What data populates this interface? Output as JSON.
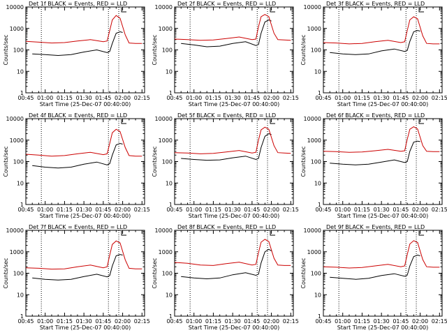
{
  "figure": {
    "colors": {
      "events": "#000000",
      "lld": "#cc0000",
      "axes": "#000000",
      "background": "#ffffff"
    }
  },
  "chart_data": [
    {
      "type": "line",
      "title": "Det 1f BLACK = Events, RED = LLD",
      "xlabel": "Start Time (25-Dec-07 00:40:00)",
      "ylabel": "Counts/sec",
      "y_scale": "log",
      "ylim": [
        1,
        10000
      ],
      "xlim": [
        "00:45",
        "02:17"
      ],
      "x_ticks": [
        "00:45",
        "01:00",
        "01:15",
        "01:30",
        "01:45",
        "02:00",
        "02:15"
      ],
      "y_ticks": [
        "1",
        "10",
        "100",
        "1000",
        "10000"
      ],
      "vlines": [
        "00:57",
        "01:49",
        "01:57"
      ],
      "series": [
        {
          "name": "Events",
          "x": [
            "00:50",
            "01:00",
            "01:10",
            "01:20",
            "01:30",
            "01:40",
            "01:48",
            "01:50",
            "01:52",
            "01:55",
            "01:58",
            "02:00"
          ],
          "values": [
            65,
            60,
            55,
            60,
            80,
            100,
            75,
            85,
            200,
            600,
            700,
            650
          ]
        },
        {
          "name": "LLD",
          "x": [
            "00:45",
            "00:55",
            "01:05",
            "01:15",
            "01:25",
            "01:35",
            "01:45",
            "01:48",
            "01:50",
            "01:52",
            "01:55",
            "01:58",
            "02:02",
            "02:05",
            "02:10",
            "02:15"
          ],
          "values": [
            250,
            230,
            210,
            220,
            260,
            300,
            240,
            260,
            800,
            2500,
            4000,
            3000,
            500,
            210,
            200,
            200
          ]
        }
      ]
    },
    {
      "type": "line",
      "title": "Det 2f BLACK = Events, RED = LLD",
      "xlabel": "Start Time (25-Dec-07 00:40:00)",
      "ylabel": "Counts/sec",
      "y_scale": "log",
      "ylim": [
        1,
        10000
      ],
      "xlim": [
        "00:45",
        "02:17"
      ],
      "x_ticks": [
        "00:45",
        "01:00",
        "01:15",
        "01:30",
        "01:45",
        "02:00",
        "02:15"
      ],
      "y_ticks": [
        "1",
        "10",
        "100",
        "1000",
        "10000"
      ],
      "vlines": [
        "00:57",
        "01:49",
        "01:57"
      ],
      "series": [
        {
          "name": "Events",
          "x": [
            "00:50",
            "01:00",
            "01:10",
            "01:20",
            "01:30",
            "01:40",
            "01:48",
            "01:50",
            "01:52",
            "01:55",
            "01:58",
            "02:00"
          ],
          "values": [
            200,
            170,
            140,
            150,
            200,
            240,
            160,
            180,
            600,
            2000,
            2500,
            2200
          ]
        },
        {
          "name": "LLD",
          "x": [
            "00:45",
            "00:55",
            "01:05",
            "01:15",
            "01:25",
            "01:35",
            "01:45",
            "01:48",
            "01:50",
            "01:52",
            "01:55",
            "01:58",
            "02:02",
            "02:05",
            "02:10",
            "02:15"
          ],
          "values": [
            320,
            300,
            280,
            290,
            340,
            400,
            300,
            320,
            1200,
            3500,
            4500,
            3500,
            600,
            300,
            290,
            280
          ]
        }
      ]
    },
    {
      "type": "line",
      "title": "Det 3f BLACK = Events, RED = LLD",
      "xlabel": "Start Time (25-Dec-07 00:40:00)",
      "ylabel": "Counts/sec",
      "y_scale": "log",
      "ylim": [
        1,
        10000
      ],
      "xlim": [
        "00:45",
        "02:17"
      ],
      "x_ticks": [
        "00:45",
        "01:00",
        "01:15",
        "01:30",
        "01:45",
        "02:00",
        "02:15"
      ],
      "y_ticks": [
        "1",
        "10",
        "100",
        "1000",
        "10000"
      ],
      "vlines": [
        "00:57",
        "01:49",
        "01:57"
      ],
      "series": [
        {
          "name": "Events",
          "x": [
            "00:50",
            "01:00",
            "01:10",
            "01:20",
            "01:30",
            "01:40",
            "01:48",
            "01:50",
            "01:52",
            "01:55",
            "01:58",
            "02:00"
          ],
          "values": [
            75,
            65,
            60,
            65,
            90,
            110,
            85,
            95,
            250,
            700,
            800,
            750
          ]
        },
        {
          "name": "LLD",
          "x": [
            "00:45",
            "00:55",
            "01:05",
            "01:15",
            "01:25",
            "01:35",
            "01:45",
            "01:48",
            "01:50",
            "01:52",
            "01:55",
            "01:58",
            "02:02",
            "02:05",
            "02:10",
            "02:15"
          ],
          "values": [
            220,
            210,
            190,
            200,
            240,
            280,
            220,
            240,
            800,
            2500,
            3500,
            2800,
            450,
            200,
            190,
            190
          ]
        }
      ]
    },
    {
      "type": "line",
      "title": "Det 4f BLACK = Events, RED = LLD",
      "xlabel": "Start Time (25-Dec-07 00:40:00)",
      "ylabel": "Counts/sec",
      "y_scale": "log",
      "ylim": [
        1,
        10000
      ],
      "xlim": [
        "00:45",
        "02:17"
      ],
      "x_ticks": [
        "00:45",
        "01:00",
        "01:15",
        "01:30",
        "01:45",
        "02:00",
        "02:15"
      ],
      "y_ticks": [
        "1",
        "10",
        "100",
        "1000",
        "10000"
      ],
      "vlines": [
        "00:57",
        "01:49",
        "01:57"
      ],
      "series": [
        {
          "name": "Events",
          "x": [
            "00:50",
            "01:00",
            "01:10",
            "01:20",
            "01:30",
            "01:40",
            "01:48",
            "01:50",
            "01:52",
            "01:55",
            "01:58",
            "02:00"
          ],
          "values": [
            65,
            55,
            50,
            55,
            75,
            95,
            70,
            80,
            200,
            600,
            700,
            650
          ]
        },
        {
          "name": "LLD",
          "x": [
            "00:45",
            "00:55",
            "01:05",
            "01:15",
            "01:25",
            "01:35",
            "01:45",
            "01:48",
            "01:50",
            "01:52",
            "01:55",
            "01:58",
            "02:02",
            "02:05",
            "02:10",
            "02:15"
          ],
          "values": [
            220,
            200,
            180,
            190,
            230,
            270,
            210,
            230,
            700,
            2200,
            3200,
            2500,
            450,
            190,
            180,
            180
          ]
        }
      ]
    },
    {
      "type": "line",
      "title": "Det 5f BLACK = Events, RED = LLD",
      "xlabel": "Start Time (25-Dec-07 00:40:00)",
      "ylabel": "Counts/sec",
      "y_scale": "log",
      "ylim": [
        1,
        10000
      ],
      "xlim": [
        "00:45",
        "02:17"
      ],
      "x_ticks": [
        "00:45",
        "01:00",
        "01:15",
        "01:30",
        "01:45",
        "02:00",
        "02:15"
      ],
      "y_ticks": [
        "1",
        "10",
        "100",
        "1000",
        "10000"
      ],
      "vlines": [
        "00:57",
        "01:49",
        "01:57"
      ],
      "series": [
        {
          "name": "Events",
          "x": [
            "00:50",
            "01:00",
            "01:10",
            "01:20",
            "01:30",
            "01:40",
            "01:48",
            "01:50",
            "01:52",
            "01:55",
            "01:58",
            "02:00"
          ],
          "values": [
            140,
            125,
            115,
            120,
            150,
            180,
            125,
            140,
            450,
            1500,
            2000,
            1800
          ]
        },
        {
          "name": "LLD",
          "x": [
            "00:45",
            "00:55",
            "01:05",
            "01:15",
            "01:25",
            "01:35",
            "01:45",
            "01:48",
            "01:50",
            "01:52",
            "01:55",
            "01:58",
            "02:02",
            "02:05",
            "02:10",
            "02:15"
          ],
          "values": [
            260,
            250,
            230,
            240,
            280,
            330,
            250,
            270,
            1000,
            3000,
            4000,
            3200,
            550,
            260,
            250,
            240
          ]
        }
      ]
    },
    {
      "type": "line",
      "title": "Det 6f BLACK = Events, RED = LLD",
      "xlabel": "Start Time (25-Dec-07 00:40:00)",
      "ylabel": "Counts/sec",
      "y_scale": "log",
      "ylim": [
        1,
        10000
      ],
      "xlim": [
        "00:45",
        "02:17"
      ],
      "x_ticks": [
        "00:45",
        "01:00",
        "01:15",
        "01:30",
        "01:45",
        "02:00",
        "02:15"
      ],
      "y_ticks": [
        "1",
        "10",
        "100",
        "1000",
        "10000"
      ],
      "vlines": [
        "00:57",
        "01:49",
        "01:57"
      ],
      "series": [
        {
          "name": "Events",
          "x": [
            "00:50",
            "01:00",
            "01:10",
            "01:20",
            "01:30",
            "01:40",
            "01:48",
            "01:50",
            "01:52",
            "01:55",
            "01:58",
            "02:00"
          ],
          "values": [
            85,
            75,
            70,
            75,
            95,
            120,
            90,
            100,
            300,
            800,
            900,
            850
          ]
        },
        {
          "name": "LLD",
          "x": [
            "00:45",
            "00:55",
            "01:05",
            "01:15",
            "01:25",
            "01:35",
            "01:45",
            "01:48",
            "01:50",
            "01:52",
            "01:55",
            "01:58",
            "02:02",
            "02:05",
            "02:10",
            "02:15"
          ],
          "values": [
            300,
            290,
            270,
            280,
            320,
            370,
            300,
            320,
            1100,
            3200,
            4200,
            3300,
            550,
            300,
            290,
            290
          ]
        }
      ]
    },
    {
      "type": "line",
      "title": "Det 7f BLACK = Events, RED = LLD",
      "xlabel": "Start Time (25-Dec-07 00:40:00)",
      "ylabel": "Counts/sec",
      "y_scale": "log",
      "ylim": [
        1,
        10000
      ],
      "xlim": [
        "00:45",
        "02:17"
      ],
      "x_ticks": [
        "00:45",
        "01:00",
        "01:15",
        "01:30",
        "01:45",
        "02:00",
        "02:15"
      ],
      "y_ticks": [
        "1",
        "10",
        "100",
        "1000",
        "10000"
      ],
      "vlines": [
        "00:57",
        "01:49",
        "01:57"
      ],
      "series": [
        {
          "name": "Events",
          "x": [
            "00:50",
            "01:00",
            "01:10",
            "01:20",
            "01:30",
            "01:40",
            "01:48",
            "01:50",
            "01:52",
            "01:55",
            "01:58",
            "02:00"
          ],
          "values": [
            60,
            52,
            48,
            52,
            70,
            90,
            68,
            78,
            220,
            650,
            750,
            700
          ]
        },
        {
          "name": "LLD",
          "x": [
            "00:45",
            "00:55",
            "01:05",
            "01:15",
            "01:25",
            "01:35",
            "01:45",
            "01:48",
            "01:50",
            "01:52",
            "01:55",
            "01:58",
            "02:02",
            "02:05",
            "02:10",
            "02:15"
          ],
          "values": [
            180,
            170,
            155,
            160,
            200,
            240,
            180,
            200,
            700,
            2200,
            3200,
            2600,
            420,
            170,
            160,
            160
          ]
        }
      ]
    },
    {
      "type": "line",
      "title": "Det 8f BLACK = Events, RED = LLD",
      "xlabel": "Start Time (25-Dec-07 00:40:00)",
      "ylabel": "Counts/sec",
      "y_scale": "log",
      "ylim": [
        1,
        10000
      ],
      "xlim": [
        "00:45",
        "02:17"
      ],
      "x_ticks": [
        "00:45",
        "01:00",
        "01:15",
        "01:30",
        "01:45",
        "02:00",
        "02:15"
      ],
      "y_ticks": [
        "1",
        "10",
        "100",
        "1000",
        "10000"
      ],
      "vlines": [
        "00:57",
        "01:49",
        "01:57"
      ],
      "series": [
        {
          "name": "Events",
          "x": [
            "00:50",
            "01:00",
            "01:10",
            "01:20",
            "01:30",
            "01:40",
            "01:48",
            "01:50",
            "01:52",
            "01:55",
            "01:58",
            "02:00"
          ],
          "values": [
            70,
            60,
            55,
            60,
            85,
            105,
            80,
            90,
            300,
            1000,
            1300,
            1100
          ]
        },
        {
          "name": "LLD",
          "x": [
            "00:45",
            "00:55",
            "01:05",
            "01:15",
            "01:25",
            "01:35",
            "01:45",
            "01:48",
            "01:50",
            "01:52",
            "01:55",
            "01:58",
            "02:02",
            "02:05",
            "02:10",
            "02:15"
          ],
          "values": [
            320,
            290,
            240,
            230,
            280,
            330,
            240,
            260,
            900,
            2800,
            3800,
            3000,
            500,
            240,
            230,
            230
          ]
        }
      ]
    },
    {
      "type": "line",
      "title": "Det 9f BLACK = Events, RED = LLD",
      "xlabel": "Start Time (25-Dec-07 00:40:00)",
      "ylabel": "Counts/sec",
      "y_scale": "log",
      "ylim": [
        1,
        10000
      ],
      "xlim": [
        "00:45",
        "02:17"
      ],
      "x_ticks": [
        "00:45",
        "01:00",
        "01:15",
        "01:30",
        "01:45",
        "02:00",
        "02:15"
      ],
      "y_ticks": [
        "1",
        "10",
        "100",
        "1000",
        "10000"
      ],
      "vlines": [
        "00:57",
        "01:49",
        "01:57"
      ],
      "series": [
        {
          "name": "Events",
          "x": [
            "00:50",
            "01:00",
            "01:10",
            "01:20",
            "01:30",
            "01:40",
            "01:48",
            "01:50",
            "01:52",
            "01:55",
            "01:58",
            "02:00"
          ],
          "values": [
            65,
            58,
            52,
            58,
            78,
            95,
            72,
            82,
            220,
            600,
            700,
            650
          ]
        },
        {
          "name": "LLD",
          "x": [
            "00:45",
            "00:55",
            "01:05",
            "01:15",
            "01:25",
            "01:35",
            "01:45",
            "01:48",
            "01:50",
            "01:52",
            "01:55",
            "01:58",
            "02:02",
            "02:05",
            "02:10",
            "02:15"
          ],
          "values": [
            200,
            190,
            175,
            185,
            220,
            260,
            200,
            220,
            750,
            2300,
            3300,
            2700,
            430,
            200,
            190,
            190
          ]
        }
      ]
    }
  ]
}
